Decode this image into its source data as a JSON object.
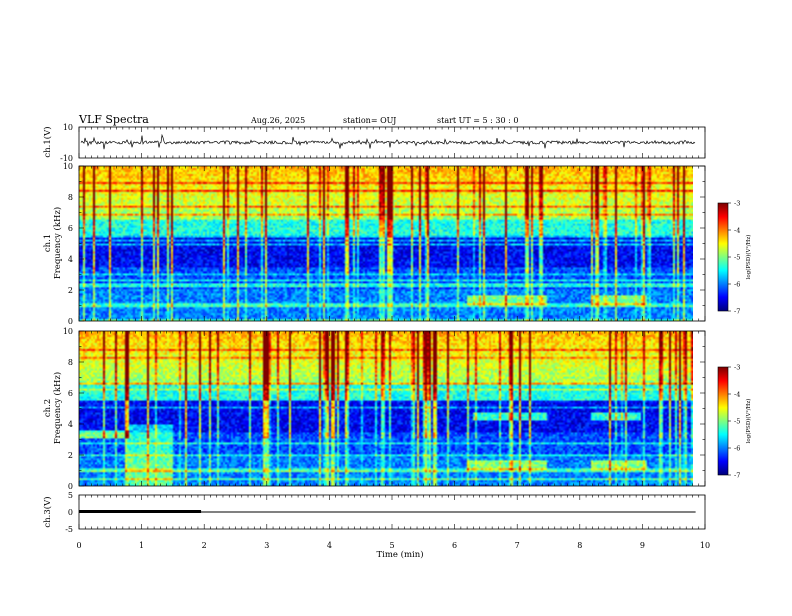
{
  "header": {
    "title": "VLF Spectra",
    "date": "Aug.26, 2025",
    "station": "station= OUJ",
    "start": "start UT =  5 : 30 : 0"
  },
  "chart_data": [
    {
      "type": "line",
      "ylabel": "ch.1(V)",
      "ylim": [
        -10,
        10
      ],
      "ytick_labels": [
        "10",
        "-10"
      ],
      "xlim": [
        0,
        10
      ],
      "series": [
        {
          "description_level": 0,
          "noise_amplitude": 2
        }
      ]
    },
    {
      "type": "heatmap",
      "ylabel_top": "ch.1",
      "ylabel": "Frequency (kHz)",
      "ylim": [
        0,
        10
      ],
      "ytick_labels": [
        "0",
        "2",
        "4",
        "6",
        "8",
        "10"
      ],
      "xlim": [
        0,
        10
      ],
      "data_extent_min": 9.85,
      "colorbar": {
        "label": "log(PSD)(V²/Hz)",
        "ticks": [
          "-3",
          "-4",
          "-5",
          "-6",
          "-7"
        ],
        "range": [
          -7,
          -3
        ]
      }
    },
    {
      "type": "heatmap",
      "ylabel_top": "ch.2",
      "ylabel": "Frequency (kHz)",
      "ylim": [
        0,
        10
      ],
      "ytick_labels": [
        "0",
        "2",
        "4",
        "6",
        "8",
        "10"
      ],
      "xlim": [
        0,
        10
      ],
      "data_extent_min": 9.85,
      "colorbar": {
        "label": "log(PSD)(V²/Hz)",
        "ticks": [
          "-3",
          "-4",
          "-5",
          "-6",
          "-7"
        ],
        "range": [
          -7,
          -3
        ]
      }
    },
    {
      "type": "line",
      "ylabel": "ch.3(V)",
      "ylim": [
        -5,
        5
      ],
      "ytick_labels": [
        "5",
        "0",
        "-5"
      ],
      "xlim": [
        0,
        10
      ],
      "xlabel": "Time (min)",
      "xtick_labels": [
        "0",
        "1",
        "2",
        "3",
        "4",
        "5",
        "6",
        "7",
        "8",
        "9",
        "10"
      ],
      "series": [
        {
          "level": 0
        }
      ],
      "bar_segment": [
        0,
        1.95
      ]
    }
  ],
  "colors": {
    "axis": "#000000",
    "trace": "#000000"
  }
}
